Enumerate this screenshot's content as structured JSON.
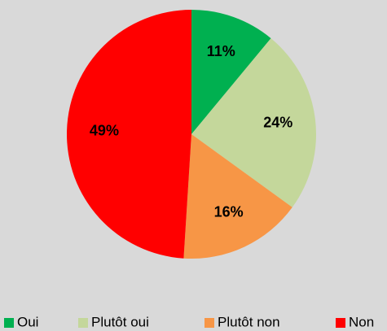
{
  "chart_data": {
    "type": "pie",
    "categories": [
      "Oui",
      "Plutôt oui",
      "Plutôt non",
      "Non"
    ],
    "values": [
      11,
      24,
      16,
      49
    ],
    "value_labels": [
      "11%",
      "24%",
      "16%",
      "49%"
    ],
    "colors": [
      "#00b050",
      "#c4d79b",
      "#f79646",
      "#ff0000"
    ],
    "legend": "bottom"
  }
}
